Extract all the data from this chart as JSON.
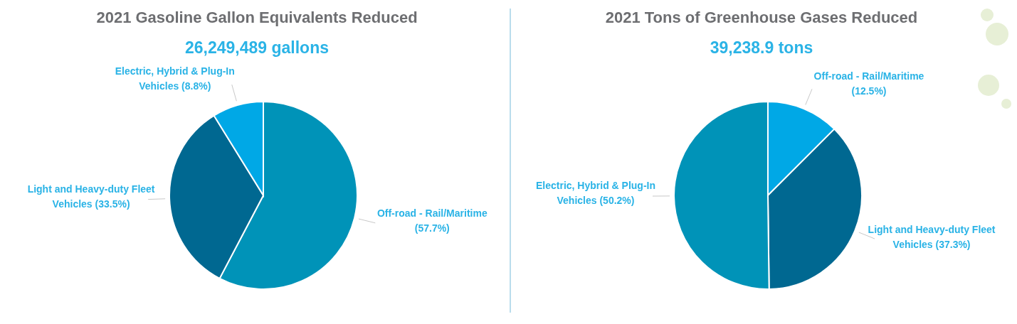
{
  "chart_data": [
    {
      "type": "pie",
      "title": "2021 Gasoline Gallon Equivalents Reduced",
      "subtitle": "26,249,489 gallons",
      "categories": [
        "Off-road - Rail/Maritime",
        "Light and Heavy-duty Fleet Vehicles",
        "Electric, Hybrid & Plug-In Vehicles"
      ],
      "values": [
        57.7,
        33.5,
        8.8
      ],
      "value_labels": [
        "(57.7%)",
        "(33.5%)",
        "(8.8%)"
      ],
      "colors": [
        "#0093b8",
        "#006891",
        "#00a8e6"
      ]
    },
    {
      "type": "pie",
      "title": "2021 Tons of Greenhouse Gases Reduced",
      "subtitle": "39,238.9 tons",
      "categories": [
        "Off-road - Rail/Maritime",
        "Light and Heavy-duty Fleet Vehicles",
        "Electric, Hybrid & Plug-In Vehicles"
      ],
      "values": [
        12.5,
        37.3,
        50.2
      ],
      "value_labels": [
        "(12.5%)",
        "(37.3%)",
        "(50.2%)"
      ],
      "colors": [
        "#00a8e6",
        "#006891",
        "#0093b8"
      ]
    }
  ]
}
